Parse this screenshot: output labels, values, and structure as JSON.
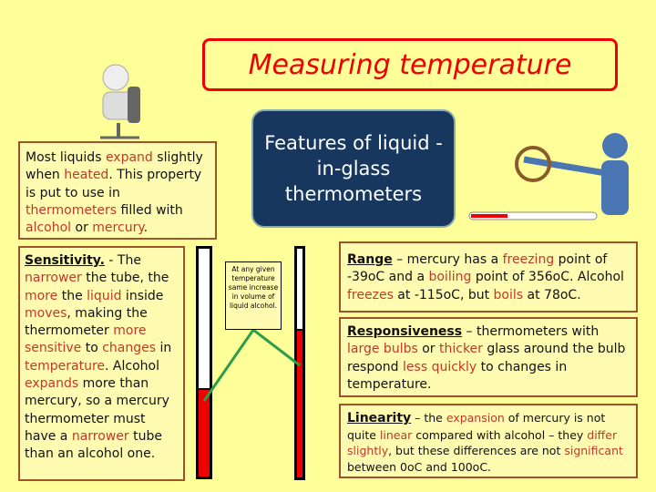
{
  "title": "Measuring temperature",
  "features": "Features of liquid -in-glass thermometers",
  "intro": [
    [
      "Most liquids ",
      0
    ],
    [
      "expand",
      1
    ],
    [
      " slightly when ",
      0
    ],
    [
      "heated",
      1
    ],
    [
      ". This property is put to use in ",
      0
    ],
    [
      "thermometers",
      1
    ],
    [
      " filled with ",
      0
    ],
    [
      "alcohol",
      1
    ],
    [
      " or ",
      0
    ],
    [
      "mercury",
      1
    ],
    [
      ".",
      0
    ]
  ],
  "sensitivity": {
    "heading": "Sensitivity.",
    "body": [
      [
        " - The ",
        0
      ],
      [
        "narrower",
        1
      ],
      [
        " the tube, the ",
        0
      ],
      [
        "more",
        1
      ],
      [
        " the ",
        0
      ],
      [
        "liquid",
        1
      ],
      [
        " inside ",
        0
      ],
      [
        "moves",
        1
      ],
      [
        ", making the thermometer ",
        0
      ],
      [
        "more sensitive",
        1
      ],
      [
        " to ",
        0
      ],
      [
        "changes",
        1
      ],
      [
        " in ",
        0
      ],
      [
        "temperature",
        1
      ],
      [
        ".  Alcohol ",
        0
      ],
      [
        "expands",
        1
      ],
      [
        " more than mercury, so a mercury thermometer must have a ",
        0
      ],
      [
        "narrower",
        1
      ],
      [
        " tube than an alcohol one.",
        0
      ]
    ]
  },
  "callout": "At any given temperature same increase in volume of liquid alcohol.",
  "tubes": {
    "wide_fill_fraction": 0.38,
    "narrow_fill_fraction": 0.64,
    "liquid_color": "#ee0000"
  },
  "range": {
    "heading": "Range",
    "body": [
      [
        " – mercury has a ",
        0
      ],
      [
        "freezing",
        1
      ],
      [
        " point of -39oC and a ",
        0
      ],
      [
        "boiling",
        1
      ],
      [
        " point of 356oC.  Alcohol ",
        0
      ],
      [
        "freezes",
        1
      ],
      [
        " at -115oC, but ",
        0
      ],
      [
        "boils",
        1
      ],
      [
        " at 78oC.",
        0
      ]
    ]
  },
  "responsiveness": {
    "heading": "Responsiveness",
    "body": [
      [
        " – thermometers with ",
        0
      ],
      [
        "large bulbs",
        1
      ],
      [
        " or ",
        0
      ],
      [
        "thicker",
        1
      ],
      [
        " glass around the bulb respond ",
        0
      ],
      [
        "less quickly",
        1
      ],
      [
        " to changes in temperature.",
        0
      ]
    ]
  },
  "linearity": {
    "heading": "Linearity",
    "body": [
      [
        " – the ",
        0
      ],
      [
        "expansion",
        1
      ],
      [
        " of mercury is not quite ",
        0
      ],
      [
        "linear",
        1
      ],
      [
        " compared with alcohol – they ",
        0
      ],
      [
        "differ slightly",
        1
      ],
      [
        ", but these differences are not ",
        0
      ],
      [
        "significant",
        1
      ],
      [
        " between 0oC and 100oC.",
        0
      ]
    ]
  }
}
